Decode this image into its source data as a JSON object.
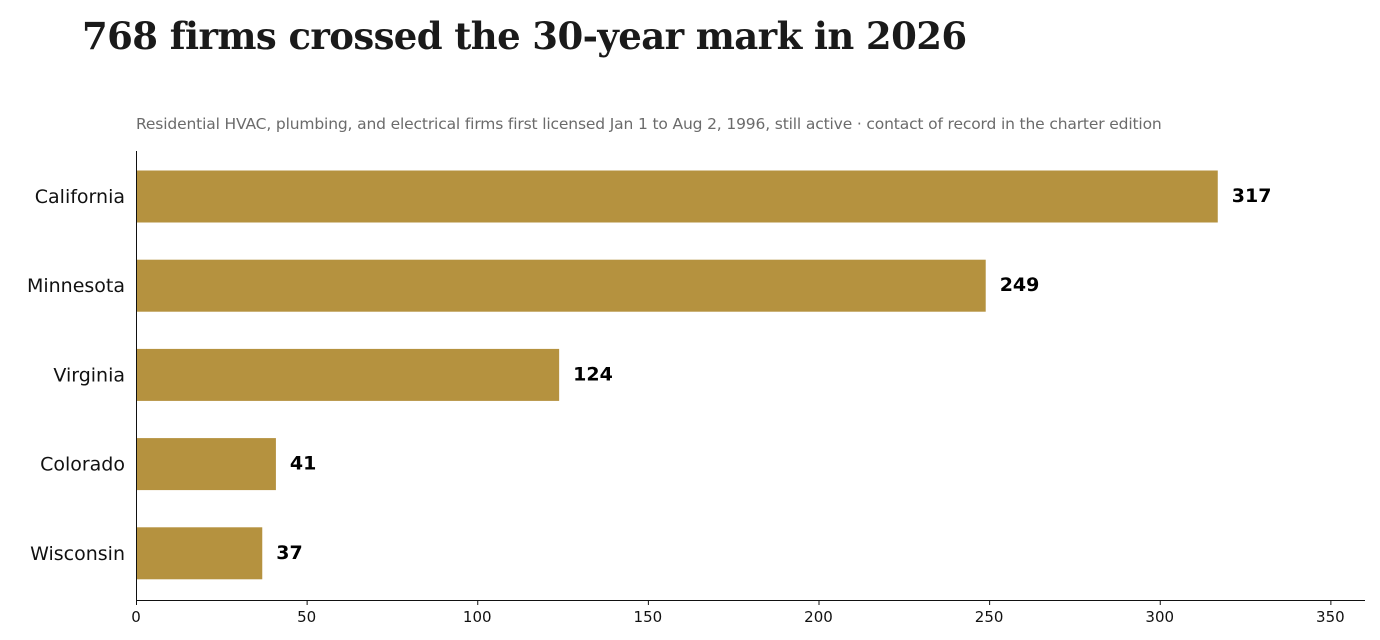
{
  "chart_data": {
    "type": "bar",
    "orientation": "horizontal",
    "title": "768 firms crossed the 30-year mark in 2026",
    "subtitle": "Residential HVAC, plumbing, and electrical firms first licensed Jan 1 to Aug 2, 1996, still active · contact of record in the charter edition",
    "categories": [
      "California",
      "Minnesota",
      "Virginia",
      "Colorado",
      "Wisconsin"
    ],
    "values": [
      317,
      249,
      124,
      41,
      37
    ],
    "value_labels": [
      "317",
      "249",
      "124",
      "41",
      "37"
    ],
    "xlim": [
      0,
      360
    ],
    "xticks": [
      0,
      50,
      100,
      150,
      200,
      250,
      300,
      350
    ],
    "xtick_labels": [
      "0",
      "50",
      "100",
      "150",
      "200",
      "250",
      "300",
      "350"
    ],
    "xlabel": "",
    "ylabel": "",
    "grid": false,
    "legend": "none",
    "bar_color": "#b5923f",
    "axis_color": "#111111"
  }
}
